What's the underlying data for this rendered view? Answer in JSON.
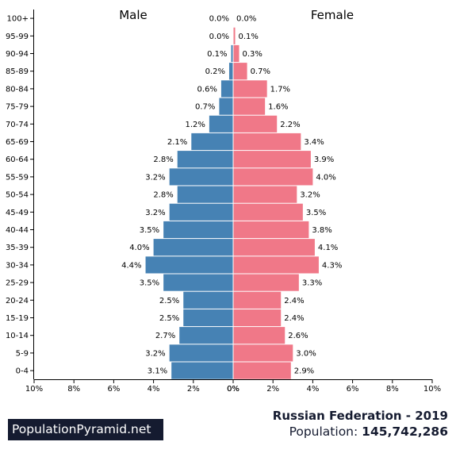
{
  "chart_data": {
    "type": "bar",
    "orientation": "horizontal-pyramid",
    "left_label": "Male",
    "right_label": "Female",
    "categories": [
      "100+",
      "95-99",
      "90-94",
      "85-89",
      "80-84",
      "75-79",
      "70-74",
      "65-69",
      "60-64",
      "55-59",
      "50-54",
      "45-49",
      "40-44",
      "35-39",
      "30-34",
      "25-29",
      "20-24",
      "15-19",
      "10-14",
      "5-9",
      "0-4"
    ],
    "series": [
      {
        "name": "Male",
        "values": [
          0.0,
          0.0,
          0.1,
          0.2,
          0.6,
          0.7,
          1.2,
          2.1,
          2.8,
          3.2,
          2.8,
          3.2,
          3.5,
          4.0,
          4.4,
          3.5,
          2.5,
          2.5,
          2.7,
          3.2,
          3.1
        ],
        "labels": [
          "0.0%",
          "0.0%",
          "0.1%",
          "0.2%",
          "0.6%",
          "0.7%",
          "1.2%",
          "2.1%",
          "2.8%",
          "3.2%",
          "2.8%",
          "3.2%",
          "3.5%",
          "4.0%",
          "4.4%",
          "3.5%",
          "2.5%",
          "2.5%",
          "2.7%",
          "3.2%",
          "3.1%"
        ]
      },
      {
        "name": "Female",
        "values": [
          0.0,
          0.1,
          0.3,
          0.7,
          1.7,
          1.6,
          2.2,
          3.4,
          3.9,
          4.0,
          3.2,
          3.5,
          3.8,
          4.1,
          4.3,
          3.3,
          2.4,
          2.4,
          2.6,
          3.0,
          2.9
        ],
        "labels": [
          "0.0%",
          "0.1%",
          "0.3%",
          "0.7%",
          "1.7%",
          "1.6%",
          "2.2%",
          "3.4%",
          "3.9%",
          "4.0%",
          "3.2%",
          "3.5%",
          "3.8%",
          "4.1%",
          "4.3%",
          "3.3%",
          "2.4%",
          "2.4%",
          "2.6%",
          "3.0%",
          "2.9%"
        ]
      }
    ],
    "xlim": [
      0,
      10
    ],
    "x_ticks": [
      "10%",
      "8%",
      "6%",
      "4%",
      "2%",
      "0%",
      "0%",
      "2%",
      "4%",
      "6%",
      "8%",
      "10%"
    ],
    "colors": {
      "male": "#4682b4",
      "female": "#f07888"
    }
  },
  "footer": {
    "brand": "PopulationPyramid.net",
    "title": "Russian Federation - 2019",
    "population_label": "Population: ",
    "population_value": "145,742,286"
  }
}
